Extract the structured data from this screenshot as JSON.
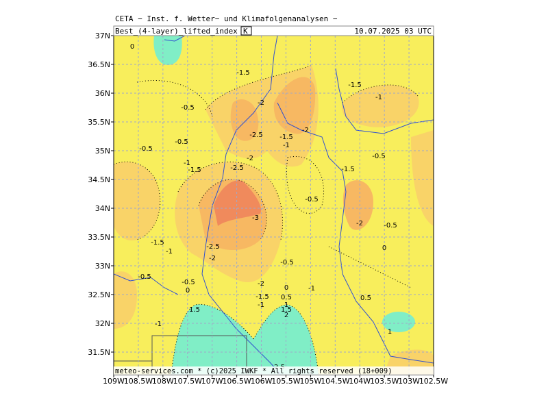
{
  "header": {
    "title": "CETA − Inst. f. Wetter− und Klimafolgenanalysen −",
    "variable": "Best_(4-layer)_lifted_index",
    "unit": "K",
    "datetime": "10.07.2025  03 UTC"
  },
  "axes": {
    "lon_labels": [
      "109W",
      "108.5W",
      "108W",
      "107.5W",
      "107W",
      "106.5W",
      "106W",
      "105.5W",
      "105W",
      "104.5W",
      "104W",
      "103.5W",
      "103W",
      "102.5W"
    ],
    "lat_labels": [
      "37N",
      "36.5N",
      "36N",
      "35.5N",
      "35N",
      "34.5N",
      "34N",
      "33.5N",
      "33N",
      "32.5N",
      "32N",
      "31.5N"
    ]
  },
  "contour_labels": [
    "0",
    "-1.5",
    "-1.5",
    "-1",
    "-2",
    "-0.5",
    "-2",
    "-2.5",
    "-1.5",
    "-1",
    "-0.5",
    "-0.5",
    "-0.5",
    "-2",
    "-1",
    "-1.5",
    "-2.5",
    "-1.5",
    "-0.5",
    "-3",
    "-2",
    "-0.5",
    "-1.5",
    "-2.5",
    "0",
    "-1",
    "-2",
    "-0.5",
    "-0.5",
    "-0.5",
    "-2",
    "0",
    "0",
    "-1",
    "-1.5",
    "0.5",
    "0.5",
    "-1",
    "1",
    "1.5",
    "1.5",
    "2",
    "-1",
    "1",
    "2.5"
  ],
  "footer": "meteo-services.com * (c)2025 IWKF * All rights reserved (18+009)"
}
